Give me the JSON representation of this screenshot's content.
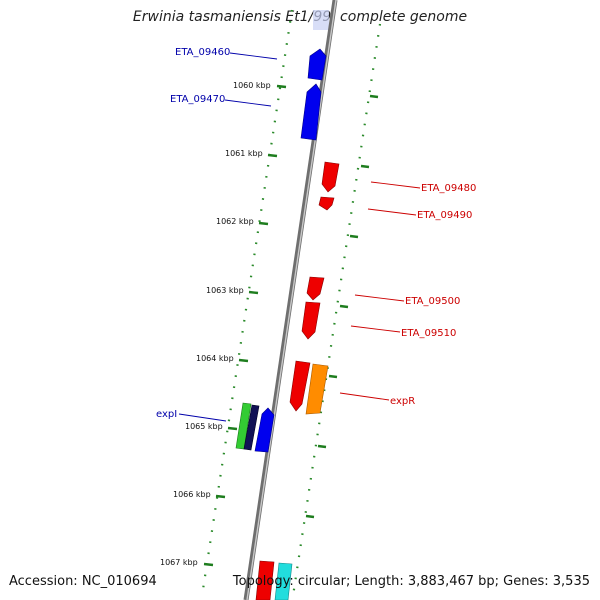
{
  "title": "Erwinia tasmaniensis Et1/99, complete genome",
  "footer": {
    "accession": "Accession: NC_010694",
    "stats": "Topology: circular; Length: 3,883,467 bp; Genes: 3,535"
  },
  "colors": {
    "backbone": "#7a7a7a",
    "tick": "#2a8a2a",
    "forward_strand": "#0000ee",
    "reverse_strand": "#ee0000",
    "expR": "#ff8c00",
    "expI": "#33cc33",
    "dark_gene": "#111155",
    "cyan_gene": "#22dddd"
  },
  "scale_labels": [
    "1060 kbp",
    "1061 kbp",
    "1062 kbp",
    "1063 kbp",
    "1064 kbp",
    "1065 kbp",
    "1066 kbp",
    "1067 kbp"
  ],
  "genes": [
    {
      "name": "ETA_09460",
      "strand": "forward",
      "color": "#0000ee"
    },
    {
      "name": "ETA_09470",
      "strand": "forward",
      "color": "#0000ee"
    },
    {
      "name": "ETA_09480",
      "strand": "reverse",
      "color": "#ee0000"
    },
    {
      "name": "ETA_09490",
      "strand": "reverse",
      "color": "#ee0000"
    },
    {
      "name": "ETA_09500",
      "strand": "reverse",
      "color": "#ee0000"
    },
    {
      "name": "ETA_09510",
      "strand": "reverse",
      "color": "#ee0000"
    },
    {
      "name": "expR",
      "strand": "reverse",
      "color": "#ff8c00"
    },
    {
      "name": "expI",
      "strand": "forward",
      "color": "#33cc33"
    }
  ]
}
